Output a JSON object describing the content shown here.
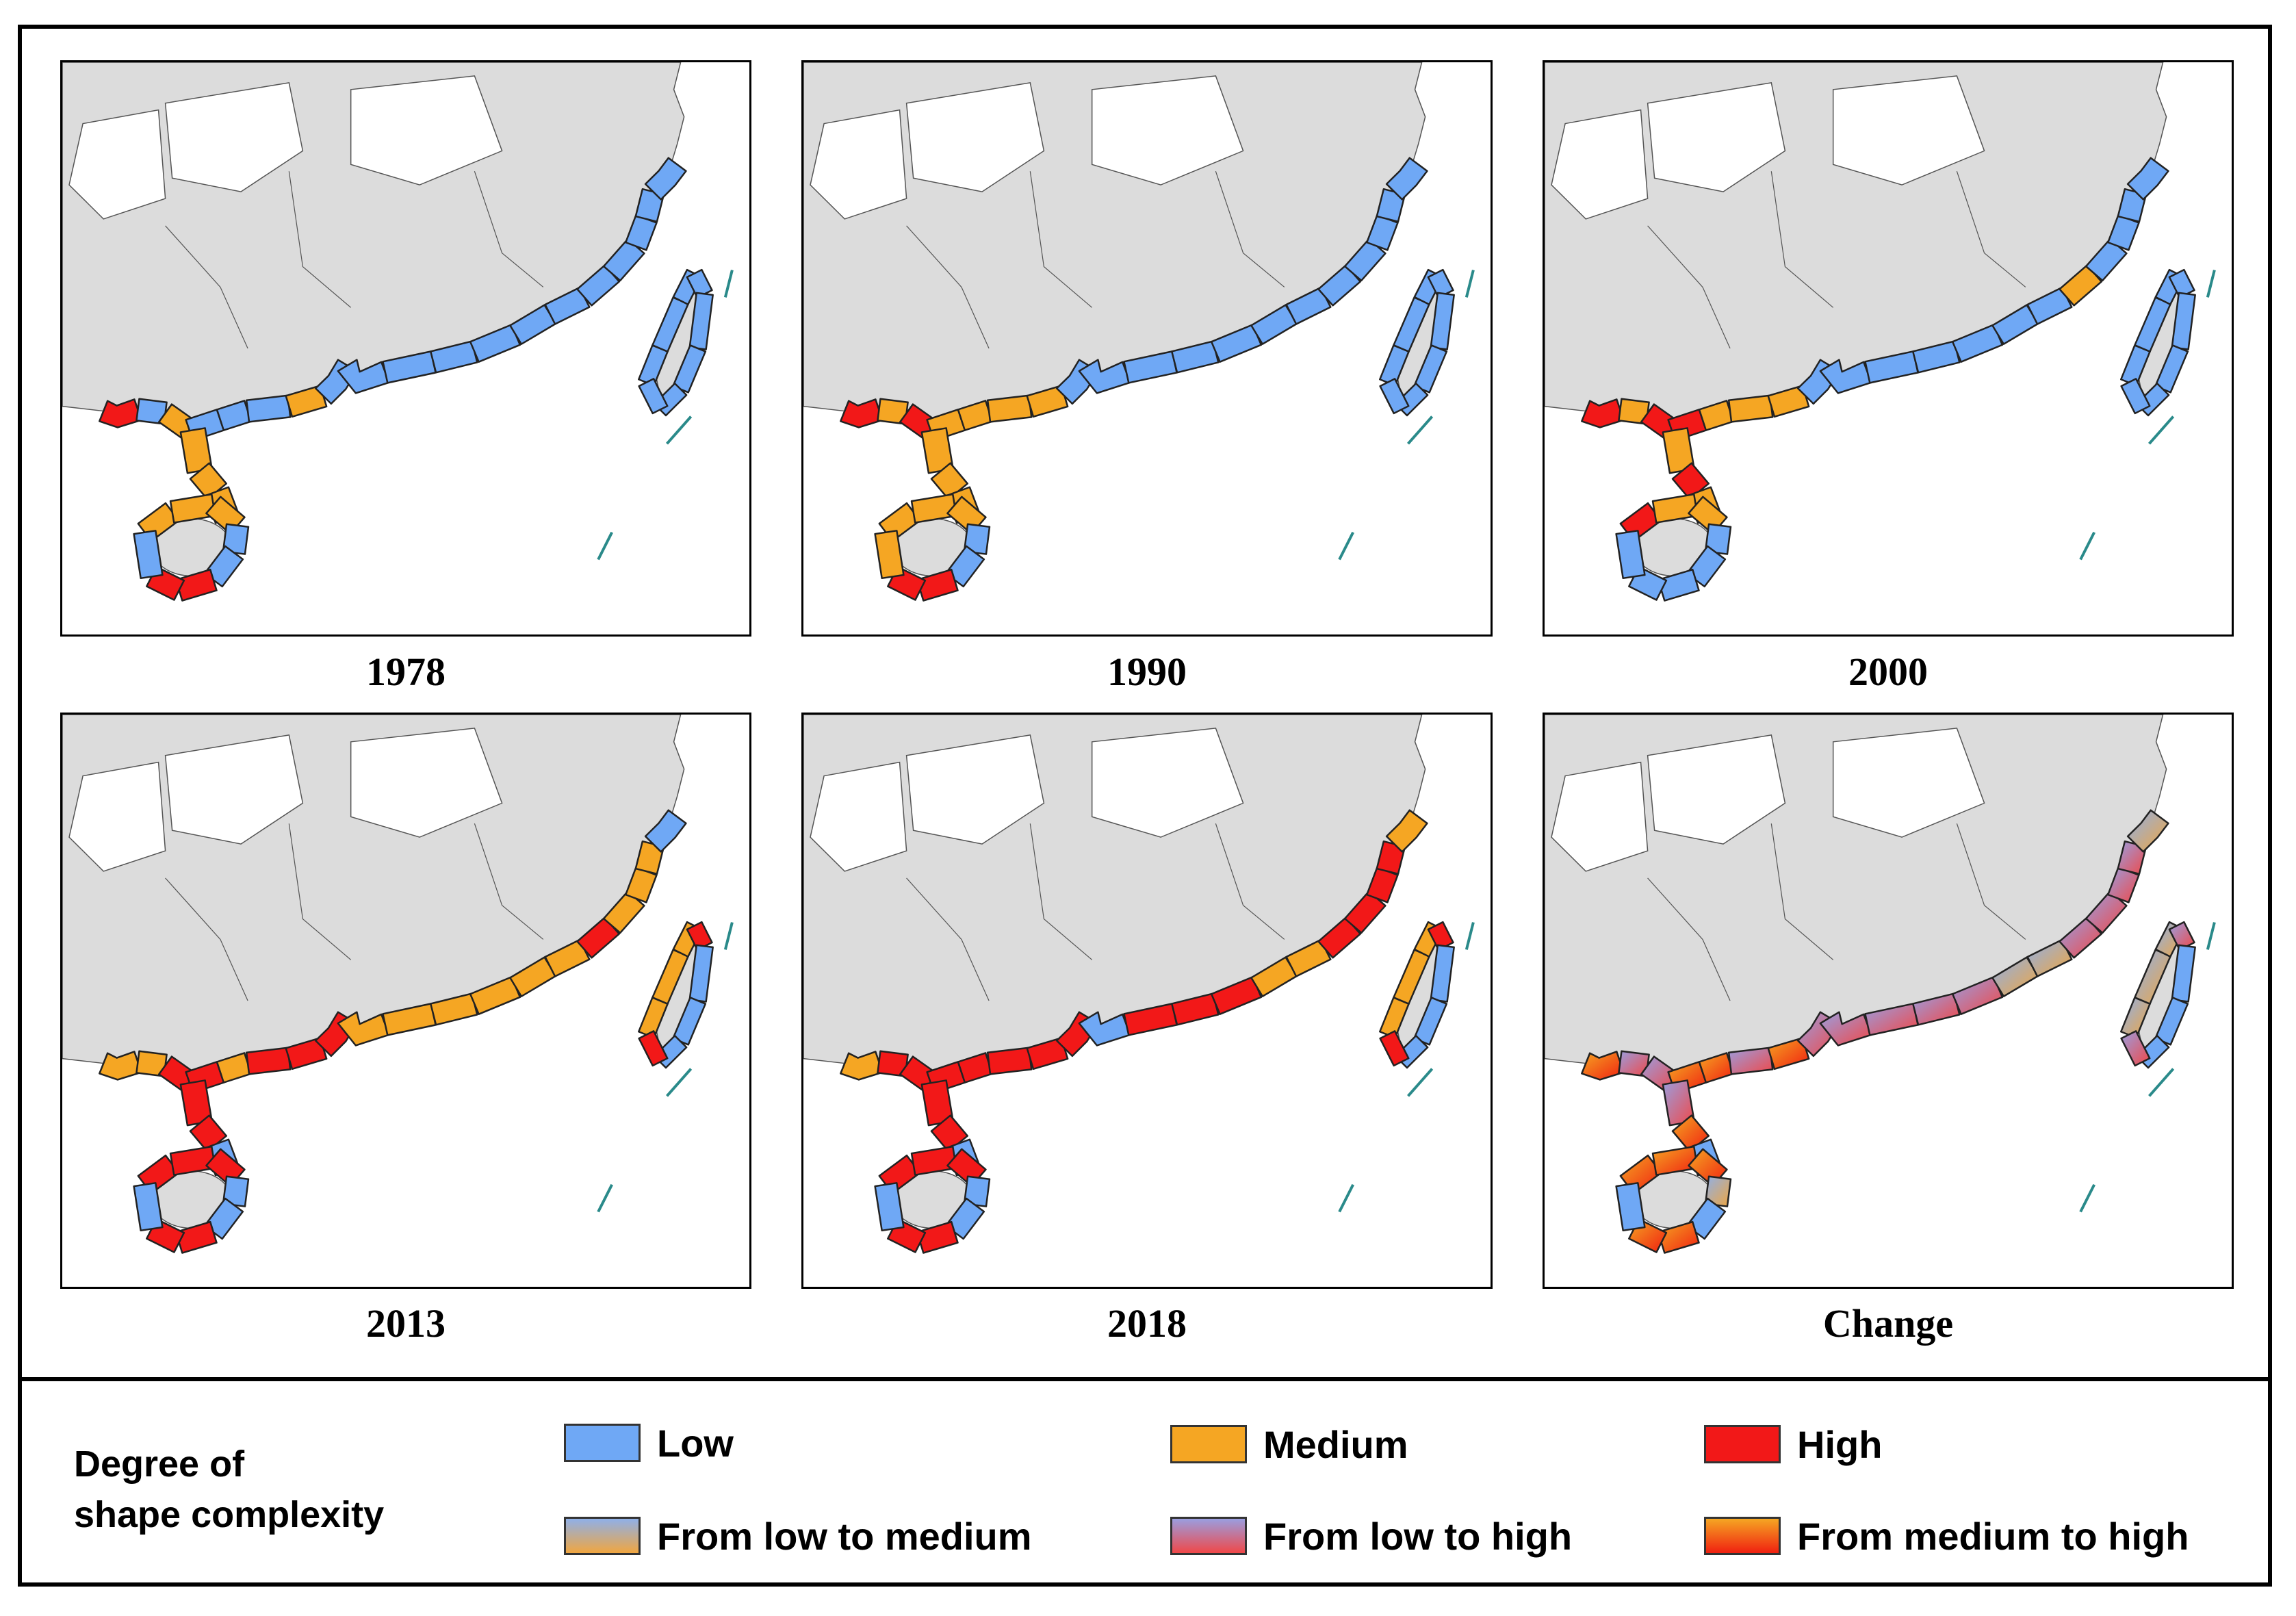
{
  "figure": {
    "panels": [
      {
        "label": "1978",
        "scheme": "y1978"
      },
      {
        "label": "1990",
        "scheme": "y1990"
      },
      {
        "label": "2000",
        "scheme": "y2000"
      },
      {
        "label": "2013",
        "scheme": "y2013"
      },
      {
        "label": "2018",
        "scheme": "y2018"
      },
      {
        "label": "Change",
        "scheme": "change"
      }
    ]
  },
  "legend": {
    "title_line1": "Degree of",
    "title_line2": "shape complexity",
    "items": [
      {
        "label": "Low",
        "color": "#6fa8f5"
      },
      {
        "label": "Medium",
        "color": "#f5a623"
      },
      {
        "label": "High",
        "color": "#f21818"
      },
      {
        "label": "From low to medium",
        "colors": [
          "#8fb0e8",
          "#f0a640"
        ]
      },
      {
        "label": "From low to high",
        "colors": [
          "#9a9ee0",
          "#f04848"
        ]
      },
      {
        "label": "From medium to high",
        "colors": [
          "#f5a623",
          "#f02010"
        ]
      }
    ]
  },
  "colors": {
    "land": "#dcdcdc",
    "ocean": "#ffffff",
    "boundary": "#555555",
    "island_lines": "#2a8a8a",
    "outline": "#222222"
  }
}
